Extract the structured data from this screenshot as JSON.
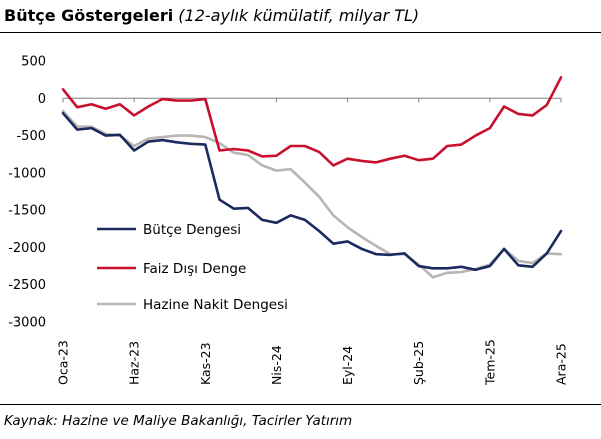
{
  "title": {
    "main": "Bütçe Göstergeleri",
    "sub": "(12-aylık kümülatif, milyar TL)"
  },
  "source": "Kaynak: Hazine ve Maliye Bakanlığı, Tacirler Yatırım",
  "chart_data": {
    "type": "line",
    "title": "Bütçe Göstergeleri (12-aylık kümülatif, milyar TL)",
    "xlabel": "",
    "ylabel": "",
    "ylim": [
      -3000,
      500
    ],
    "yticks": [
      500,
      0,
      -500,
      -1000,
      -1500,
      -2000,
      -2500,
      -3000
    ],
    "grid": false,
    "legend_position": "left-middle",
    "x": [
      "2023-01",
      "2023-02",
      "2023-03",
      "2023-04",
      "2023-05",
      "2023-06",
      "2023-07",
      "2023-08",
      "2023-09",
      "2023-10",
      "2023-11",
      "2023-12",
      "2024-01",
      "2024-02",
      "2024-03",
      "2024-04",
      "2024-05",
      "2024-06",
      "2024-07",
      "2024-08",
      "2024-09",
      "2024-10",
      "2024-11",
      "2024-12",
      "2025-01",
      "2025-02",
      "2025-03",
      "2025-04",
      "2025-05",
      "2025-06",
      "2025-07",
      "2025-08",
      "2025-09",
      "2025-10",
      "2025-11",
      "2025-12"
    ],
    "xtick_labels": [
      {
        "index": 0,
        "label": "Oca-23"
      },
      {
        "index": 5,
        "label": "Haz-23"
      },
      {
        "index": 10,
        "label": "Kas-23"
      },
      {
        "index": 15,
        "label": "Nis-24"
      },
      {
        "index": 20,
        "label": "Eyl-24"
      },
      {
        "index": 25,
        "label": "Şub-25"
      },
      {
        "index": 30,
        "label": "Tem-25"
      },
      {
        "index": 35,
        "label": "Ara-25"
      }
    ],
    "series": [
      {
        "name": "Bütçe Dengesi",
        "color": "#1b2a5e",
        "values": [
          -200,
          -420,
          -400,
          -500,
          -490,
          -700,
          -580,
          -560,
          -590,
          -610,
          -620,
          -1360,
          -1480,
          -1470,
          -1630,
          -1670,
          -1570,
          -1630,
          -1780,
          -1950,
          -1920,
          -2020,
          -2090,
          -2100,
          -2080,
          -2250,
          -2280,
          -2280,
          -2260,
          -2300,
          -2250,
          -2020,
          -2240,
          -2260,
          -2080,
          -1780
        ]
      },
      {
        "name": "Faiz Dışı Denge",
        "color": "#c8102e",
        "values": [
          120,
          -120,
          -80,
          -140,
          -80,
          -230,
          -110,
          -10,
          -30,
          -30,
          -10,
          -700,
          -680,
          -700,
          -780,
          -770,
          -640,
          -640,
          -720,
          -900,
          -810,
          -840,
          -860,
          -810,
          -770,
          -830,
          -810,
          -640,
          -620,
          -500,
          -400,
          -110,
          -210,
          -230,
          -90,
          280
        ]
      },
      {
        "name": "Hazine Nakit Dengesi",
        "color": "#b8b5b2",
        "values": [
          -170,
          -380,
          -380,
          -480,
          -500,
          -640,
          -540,
          -520,
          -500,
          -500,
          -520,
          -600,
          -730,
          -760,
          -900,
          -970,
          -950,
          -1130,
          -1320,
          -1570,
          -1730,
          -1860,
          -1980,
          -2090,
          -2090,
          -2230,
          -2400,
          -2340,
          -2330,
          -2290,
          -2230,
          -2020,
          -2180,
          -2210,
          -2080,
          -2090
        ]
      }
    ]
  }
}
